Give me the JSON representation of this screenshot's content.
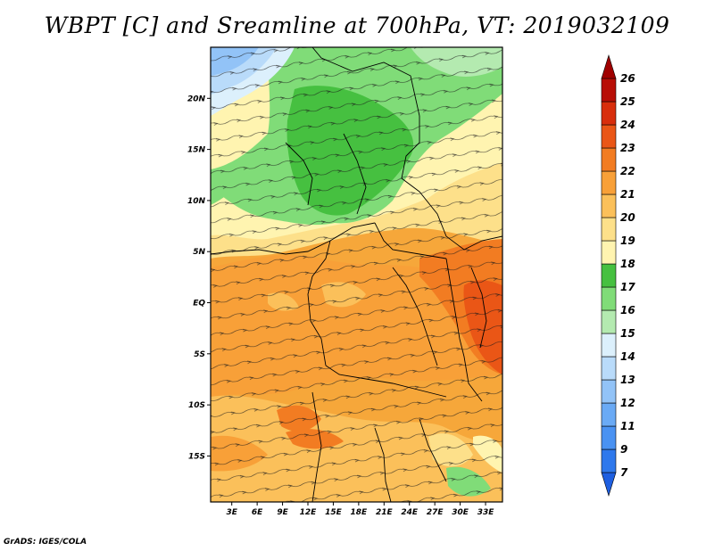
{
  "title": "WBPT [C] and Sreamline at 700hPa, VT: 2019032109",
  "credit": "GrADS: IGES/COLA",
  "map": {
    "lat_labels": [
      "20N",
      "15N",
      "10N",
      "5N",
      "EQ",
      "5S",
      "10S",
      "15S"
    ],
    "lat_values": [
      20,
      15,
      10,
      5,
      0,
      -5,
      -10,
      -15
    ],
    "lon_labels": [
      "3E",
      "6E",
      "9E",
      "12E",
      "15E",
      "18E",
      "21E",
      "24E",
      "27E",
      "30E",
      "33E"
    ],
    "lon_values": [
      3,
      6,
      9,
      12,
      15,
      18,
      21,
      24,
      27,
      30,
      33
    ],
    "lat_range": [
      -19.5,
      25
    ],
    "lon_range": [
      0.5,
      35
    ]
  },
  "colorbar": {
    "labels": [
      "7",
      "9",
      "11",
      "12",
      "13",
      "14",
      "15",
      "16",
      "17",
      "18",
      "19",
      "20",
      "21",
      "22",
      "23",
      "24",
      "25",
      "26"
    ],
    "colors": [
      "#1e5fe0",
      "#2e78ec",
      "#4a92f2",
      "#6aaaf5",
      "#92c3f7",
      "#b9dbfa",
      "#dcf0fc",
      "#b4eab0",
      "#80dc78",
      "#46c040",
      "#fff4b0",
      "#fde08a",
      "#fbc05a",
      "#f8a038",
      "#f27c22",
      "#ea5616",
      "#d82e0c",
      "#b80e06",
      "#a00000"
    ]
  }
}
